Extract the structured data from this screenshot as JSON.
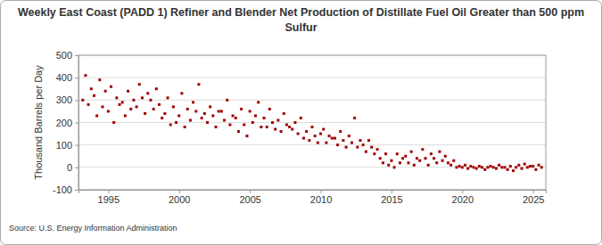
{
  "chart_data": {
    "type": "scatter",
    "title": "Weekly East Coast (PADD 1)  Refiner and Blender Net Production of Distillate Fuel Oil Greater than 500 ppm Sulfur",
    "y_label": "Thousand Barrels per Day",
    "source": "Source: U.S. Energy Information Administration",
    "color": "#a00000",
    "marker": "square",
    "grid": true,
    "xlim": [
      1992.9,
      2025.9
    ],
    "xticks": [
      1995,
      2000,
      2005,
      2010,
      2015,
      2020,
      2025
    ],
    "ylim": [
      -100,
      500
    ],
    "yticks": [
      -100,
      0,
      100,
      200,
      300,
      400,
      500
    ],
    "x": [
      1993.2,
      1993.4,
      1993.6,
      1993.8,
      1994.0,
      1994.2,
      1994.4,
      1994.6,
      1994.8,
      1995.0,
      1995.2,
      1995.4,
      1995.6,
      1995.8,
      1996.0,
      1996.2,
      1996.4,
      1996.6,
      1996.8,
      1997.0,
      1997.2,
      1997.4,
      1997.6,
      1997.8,
      1998.0,
      1998.2,
      1998.4,
      1998.6,
      1998.8,
      1999.0,
      1999.2,
      1999.4,
      1999.6,
      1999.8,
      2000.0,
      2000.2,
      2000.4,
      2000.6,
      2000.8,
      2001.0,
      2001.2,
      2001.4,
      2001.6,
      2001.8,
      2002.0,
      2002.2,
      2002.4,
      2002.6,
      2002.8,
      2003.0,
      2003.2,
      2003.4,
      2003.6,
      2003.8,
      2004.0,
      2004.2,
      2004.4,
      2004.6,
      2004.8,
      2005.0,
      2005.2,
      2005.4,
      2005.6,
      2005.8,
      2006.0,
      2006.2,
      2006.4,
      2006.6,
      2006.8,
      2007.0,
      2007.2,
      2007.4,
      2007.6,
      2007.8,
      2008.0,
      2008.2,
      2008.4,
      2008.6,
      2008.8,
      2009.0,
      2009.2,
      2009.4,
      2009.6,
      2009.8,
      2010.0,
      2010.2,
      2010.4,
      2010.6,
      2010.8,
      2011.0,
      2011.2,
      2011.4,
      2011.6,
      2011.8,
      2012.0,
      2012.2,
      2012.4,
      2012.6,
      2012.8,
      2013.0,
      2013.2,
      2013.4,
      2013.6,
      2013.8,
      2014.0,
      2014.2,
      2014.4,
      2014.6,
      2014.8,
      2015.0,
      2015.2,
      2015.4,
      2015.6,
      2015.8,
      2016.0,
      2016.2,
      2016.4,
      2016.6,
      2016.8,
      2017.0,
      2017.2,
      2017.4,
      2017.6,
      2017.8,
      2018.0,
      2018.2,
      2018.4,
      2018.6,
      2018.8,
      2019.0,
      2019.2,
      2019.4,
      2019.6,
      2019.8,
      2020.0,
      2020.2,
      2020.4,
      2020.6,
      2020.8,
      2021.0,
      2021.2,
      2021.4,
      2021.6,
      2021.8,
      2022.0,
      2022.2,
      2022.4,
      2022.6,
      2022.8,
      2023.0,
      2023.2,
      2023.4,
      2023.6,
      2023.8,
      2024.0,
      2024.2,
      2024.4,
      2024.6,
      2024.8,
      2025.0,
      2025.2,
      2025.4,
      2025.6
    ],
    "values": [
      300,
      410,
      280,
      350,
      320,
      230,
      390,
      270,
      340,
      250,
      360,
      200,
      310,
      280,
      290,
      230,
      340,
      260,
      300,
      270,
      370,
      310,
      240,
      330,
      300,
      260,
      350,
      280,
      220,
      240,
      310,
      190,
      270,
      200,
      230,
      330,
      180,
      260,
      210,
      290,
      250,
      370,
      220,
      240,
      200,
      270,
      230,
      180,
      250,
      250,
      210,
      300,
      190,
      230,
      220,
      160,
      260,
      190,
      140,
      250,
      200,
      230,
      290,
      180,
      220,
      180,
      260,
      200,
      170,
      210,
      160,
      240,
      190,
      180,
      170,
      200,
      150,
      220,
      130,
      160,
      120,
      180,
      140,
      110,
      150,
      170,
      110,
      140,
      130,
      130,
      100,
      160,
      120,
      90,
      140,
      110,
      220,
      90,
      120,
      100,
      70,
      120,
      90,
      60,
      80,
      40,
      20,
      60,
      10,
      30,
      0,
      60,
      20,
      40,
      50,
      20,
      70,
      10,
      40,
      30,
      80,
      40,
      10,
      60,
      40,
      20,
      70,
      30,
      50,
      20,
      10,
      30,
      0,
      5,
      0,
      10,
      -5,
      5,
      0,
      -5,
      5,
      0,
      -10,
      0,
      5,
      0,
      -5,
      10,
      0,
      0,
      -10,
      5,
      -15,
      0,
      10,
      -5,
      15,
      0,
      5,
      5,
      -10,
      10,
      0
    ]
  }
}
